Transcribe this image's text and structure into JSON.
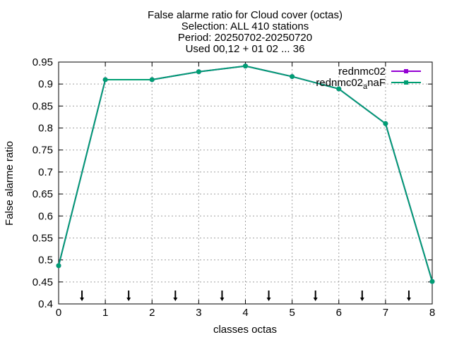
{
  "chart_data": {
    "type": "line",
    "title_lines": [
      "False alarme ratio  for Cloud cover (octas)",
      "Selection: ALL    410 stations",
      "Period: 20250702-20250720",
      "Used 00,12 + 01 02 ... 36"
    ],
    "xlabel": "classes octas",
    "ylabel": "False alarme ratio",
    "xlim": [
      0,
      8
    ],
    "ylim": [
      0.4,
      0.95
    ],
    "x_ticks": [
      0,
      1,
      2,
      3,
      4,
      5,
      6,
      7,
      8
    ],
    "y_ticks": [
      0.4,
      0.45,
      0.5,
      0.55,
      0.6,
      0.65,
      0.7,
      0.75,
      0.8,
      0.85,
      0.9,
      0.95
    ],
    "y_tick_labels": [
      "0.4",
      "0.45",
      "0.5",
      "0.55",
      "0.6",
      "0.65",
      "0.7",
      "0.75",
      "0.8",
      "0.85",
      "0.9",
      "0.95"
    ],
    "grid": true,
    "legend_position": "top-right",
    "arrow_markers_x": [
      0.5,
      1.5,
      2.5,
      3.5,
      4.5,
      5.5,
      6.5,
      7.5
    ],
    "series": [
      {
        "name": "rednmc02",
        "color": "#9400d3",
        "x": [
          0,
          1,
          2,
          3,
          4,
          5,
          6,
          7,
          8
        ],
        "values": [
          0.487,
          0.91,
          0.91,
          0.928,
          0.941,
          0.917,
          0.889,
          0.81,
          0.451
        ]
      },
      {
        "name_main": "rednmc02",
        "name_sub": "a",
        "name_tail": "naF",
        "color": "#009e73",
        "x": [
          0,
          1,
          2,
          3,
          4,
          5,
          6,
          7,
          8
        ],
        "values": [
          0.487,
          0.91,
          0.91,
          0.928,
          0.941,
          0.917,
          0.889,
          0.81,
          0.451
        ]
      }
    ]
  }
}
